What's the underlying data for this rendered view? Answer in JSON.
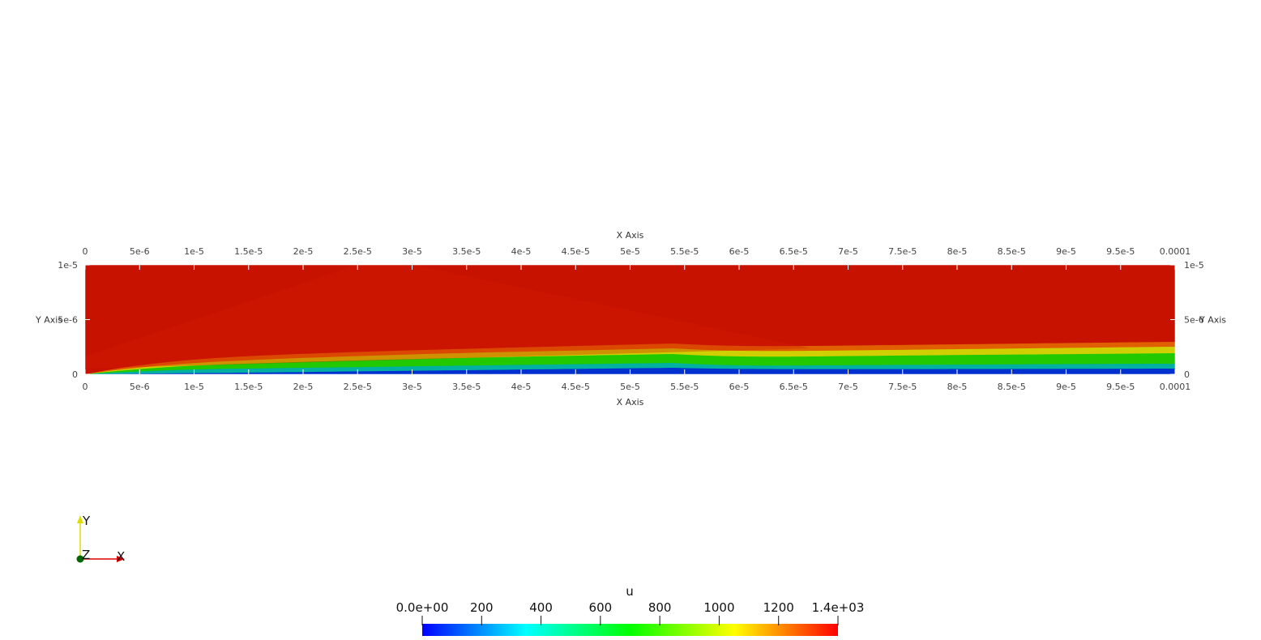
{
  "view": {
    "field_name": "u",
    "background": "#ffffff"
  },
  "grid_axes": {
    "x_title": "X Axis",
    "y_title": "Y Axis",
    "x_tick_labels": [
      "0",
      "5e-6",
      "1e-5",
      "1.5e-5",
      "2e-5",
      "2.5e-5",
      "3e-5",
      "3.5e-5",
      "4e-5",
      "4.5e-5",
      "5e-5",
      "5.5e-5",
      "6e-5",
      "6.5e-5",
      "7e-5",
      "7.5e-5",
      "8e-5",
      "8.5e-5",
      "9e-5",
      "9.5e-5",
      "0.0001"
    ],
    "y_tick_labels": [
      "0",
      "5e-6",
      "1e-5"
    ],
    "x_range": [
      0,
      0.0001
    ],
    "y_range": [
      0,
      1e-05
    ]
  },
  "orientation_triad": {
    "x_label": "X",
    "y_label": "Y",
    "z_label": "Z",
    "x_color": "#dd0000",
    "y_color": "#dddd00",
    "z_color": "#006600"
  },
  "color_bar": {
    "title": "u",
    "labels": [
      "0.0e+00",
      "200",
      "400",
      "600",
      "800",
      "1000",
      "1200",
      "1.4e+03"
    ],
    "range": [
      0,
      1400
    ],
    "colormap": [
      "#0000ff",
      "#00ffff",
      "#00ff00",
      "#ffff00",
      "#ff0000"
    ]
  }
}
